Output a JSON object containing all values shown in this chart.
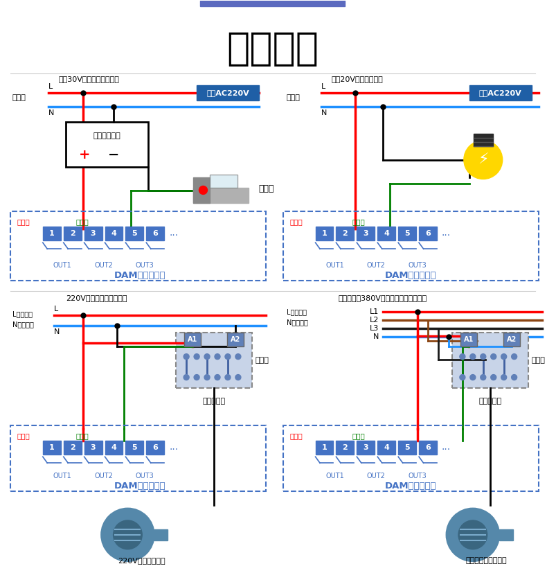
{
  "title": "输出接线",
  "bg_color": "#ffffff",
  "top_bar_color": "#5b6abf",
  "colors": {
    "red": "#ff0000",
    "blue": "#1e90ff",
    "green": "#008000",
    "black": "#000000",
    "white": "#ffffff",
    "coil_bg": "#1f5fa6",
    "coil_text": "#ffffff",
    "dashed_box": "#4472c4",
    "terminal_bg": "#4472c4",
    "terminal_text": "#ffffff",
    "gongduan_text": "#ff0000",
    "changkai_text": "#008000",
    "dam_text": "#4472c4",
    "light_gray": "#c8c8c8",
    "dark_gray": "#555555",
    "yellow": "#ffd700",
    "brown": "#8b4513",
    "contactor_face": "#6080b8",
    "contactor_line": "#000000"
  },
  "tl_subtitle": "直流30V以下设备接线方法",
  "tr_subtitle": "交流20V设备接线方法",
  "bl_subtitle": "220V接交流接触器接线图",
  "br_subtitle": "带零线交流380V接电机、泵等设备接线",
  "power_label": "电源端",
  "coil_label": "线圈AC220V",
  "dam_label": "DAM数采控制器",
  "gongduan_label": "公共端",
  "changkai_label": "常开端",
  "solenoid_label": "电磁阀",
  "device_box_label": "被控设备电源",
  "contactor_label": "交流接触器",
  "zhudian_label": "主触点",
  "motor_label_left": "220V功率较大设备",
  "motor_label_right": "电机、泵等大型设备",
  "L_label": "L代表火线",
  "N_label": "N代表零线",
  "out_labels": [
    "OUT1",
    "OUT2",
    "OUT3"
  ]
}
